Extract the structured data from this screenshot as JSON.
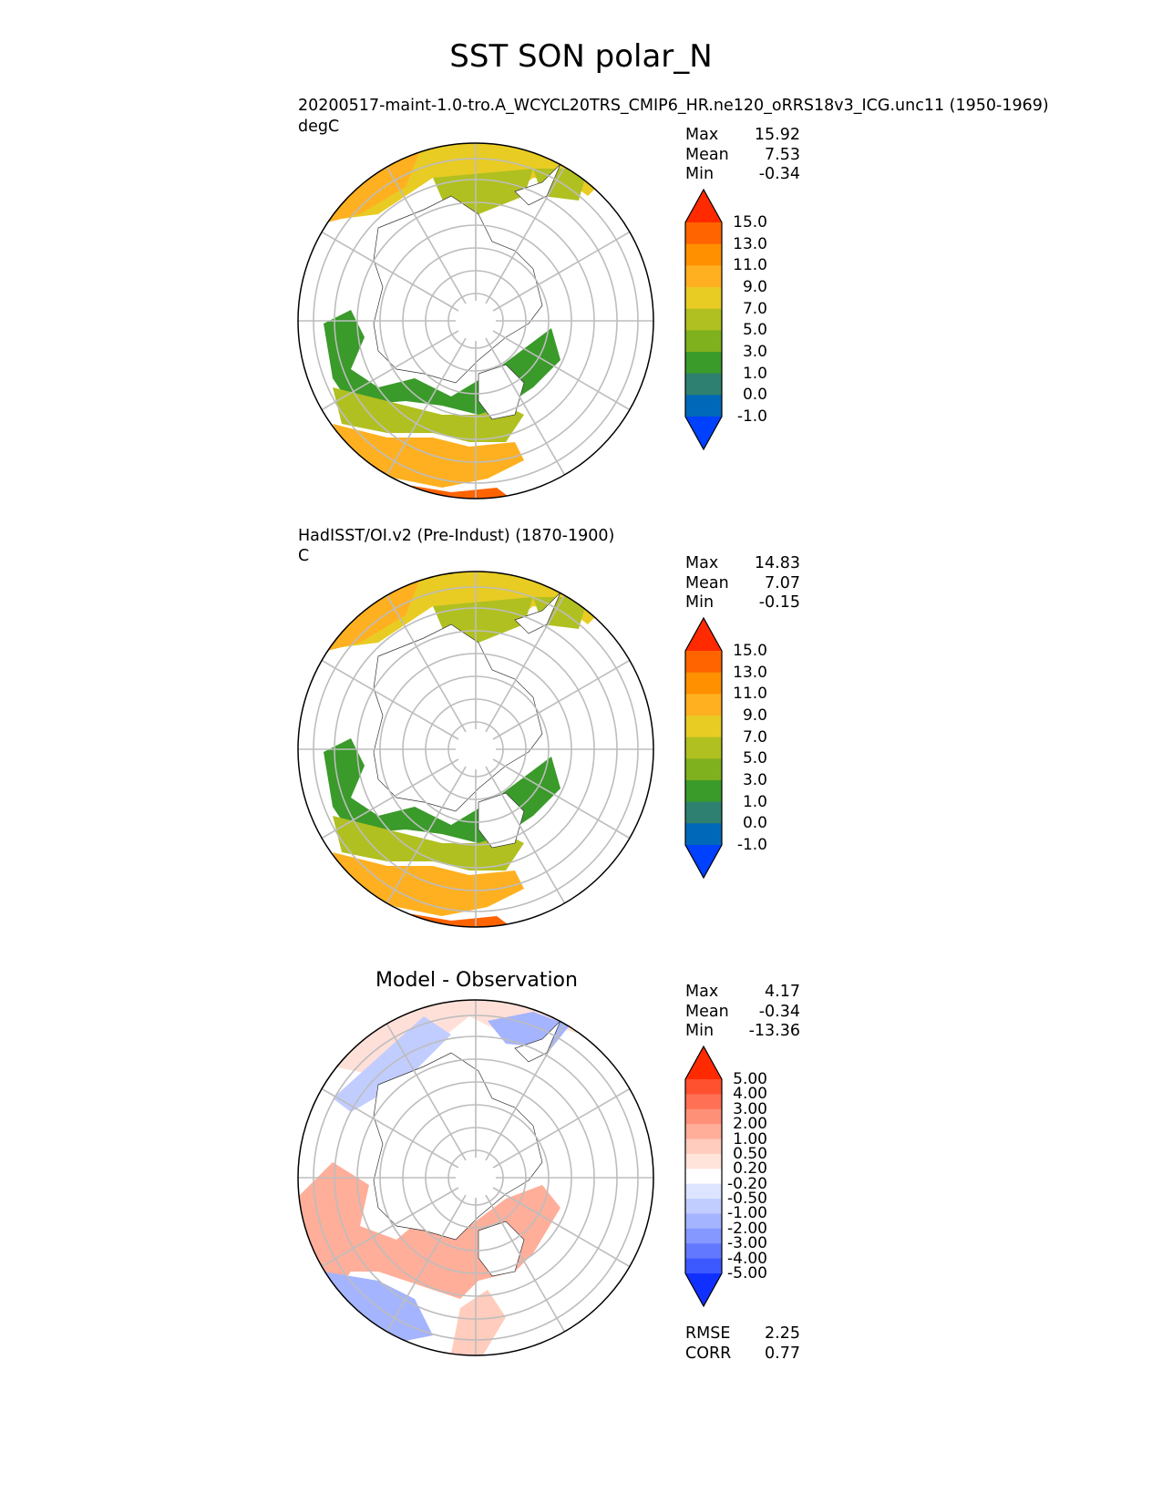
{
  "figure": {
    "title": "SST SON polar_N"
  },
  "panels": [
    {
      "id": "model",
      "title": "",
      "subtitle": "20200517-maint-1.0-tro.A_WCYCL20TRS_CMIP6_HR.ne120_oRRS18v3_ICG.unc11 (1950-1969)",
      "units": "degC",
      "stats": [
        {
          "label": "Max",
          "value": "15.92"
        },
        {
          "label": "Mean",
          "value": "7.53"
        },
        {
          "label": "Min",
          "value": "-0.34"
        }
      ],
      "colorbar": {
        "labels": [
          "15.0",
          "13.0",
          "11.0",
          "9.0",
          "7.0",
          "5.0",
          "3.0",
          "1.0",
          "0.0",
          "-1.0"
        ],
        "colors": [
          "#ff2a00",
          "#ff6400",
          "#ff9000",
          "#ffb020",
          "#e8cc24",
          "#b0c020",
          "#7fb01e",
          "#3a9a2a",
          "#2e8070",
          "#0068b8",
          "#0040ff"
        ],
        "extend": "both"
      }
    },
    {
      "id": "obs",
      "title": "",
      "subtitle": "HadISST/OI.v2 (Pre-Indust) (1870-1900)",
      "units": "C",
      "stats": [
        {
          "label": "Max",
          "value": "14.83"
        },
        {
          "label": "Mean",
          "value": "7.07"
        },
        {
          "label": "Min",
          "value": "-0.15"
        }
      ],
      "colorbar": {
        "labels": [
          "15.0",
          "13.0",
          "11.0",
          "9.0",
          "7.0",
          "5.0",
          "3.0",
          "1.0",
          "0.0",
          "-1.0"
        ],
        "colors": [
          "#ff2a00",
          "#ff6400",
          "#ff9000",
          "#ffb020",
          "#e8cc24",
          "#b0c020",
          "#7fb01e",
          "#3a9a2a",
          "#2e8070",
          "#0068b8",
          "#0040ff"
        ],
        "extend": "both"
      }
    },
    {
      "id": "diff",
      "title": "Model - Observation",
      "subtitle": "",
      "units": "",
      "stats": [
        {
          "label": "Max",
          "value": "4.17"
        },
        {
          "label": "Mean",
          "value": "-0.34"
        },
        {
          "label": "Min",
          "value": "-13.36"
        }
      ],
      "metrics": [
        {
          "label": "RMSE",
          "value": "2.25"
        },
        {
          "label": "CORR",
          "value": "0.77"
        }
      ],
      "colorbar": {
        "labels": [
          "5.00",
          "4.00",
          "3.00",
          "2.00",
          "1.00",
          "0.50",
          "0.20",
          "-0.20",
          "-0.50",
          "-1.00",
          "-2.00",
          "-3.00",
          "-4.00",
          "-5.00"
        ],
        "colors": [
          "#ff2a00",
          "#ff5030",
          "#ff7055",
          "#ff9078",
          "#ffae9a",
          "#ffccbe",
          "#ffe4dc",
          "#ffffff",
          "#dde4ff",
          "#c2cdff",
          "#a4b4ff",
          "#8498ff",
          "#6278ff",
          "#3c58ff",
          "#1030ff"
        ],
        "extend": "both"
      }
    }
  ]
}
